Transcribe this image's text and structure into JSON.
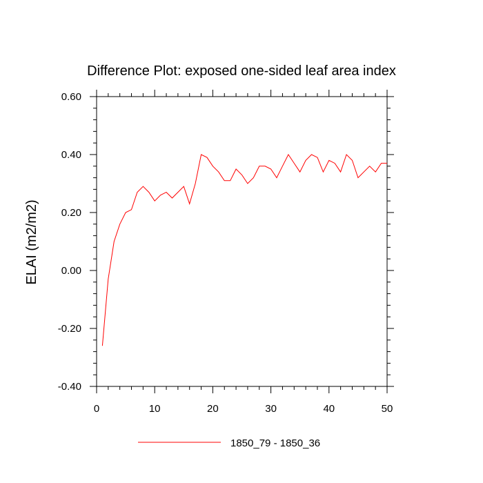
{
  "chart_data": {
    "type": "line",
    "title": "Difference Plot: exposed one-sided leaf area index",
    "xlabel": "",
    "ylabel": "ELAI  (m2/m2)",
    "xlim": [
      0,
      50
    ],
    "ylim": [
      -0.4,
      0.6
    ],
    "x_ticks": [
      0,
      10,
      20,
      30,
      40,
      50
    ],
    "x_tick_labels": [
      "0",
      "10",
      "20",
      "30",
      "40",
      "50"
    ],
    "y_ticks": [
      -0.4,
      -0.2,
      0.0,
      0.2,
      0.4,
      0.6
    ],
    "y_tick_labels": [
      "-0.40",
      "-0.20",
      "0.00",
      "0.20",
      "0.40",
      "0.60"
    ],
    "grid": false,
    "legend_position": "bottom",
    "series": [
      {
        "name": "1850_79 - 1850_36",
        "color": "#ff0000",
        "x": [
          1,
          2,
          3,
          4,
          5,
          6,
          7,
          8,
          9,
          10,
          11,
          12,
          13,
          14,
          15,
          16,
          17,
          18,
          19,
          20,
          21,
          22,
          23,
          24,
          25,
          26,
          27,
          28,
          29,
          30,
          31,
          32,
          33,
          34,
          35,
          36,
          37,
          38,
          39,
          40,
          41,
          42,
          43,
          44,
          45,
          46,
          47,
          48,
          49,
          50
        ],
        "values": [
          -0.26,
          -0.03,
          0.1,
          0.16,
          0.2,
          0.21,
          0.27,
          0.29,
          0.27,
          0.24,
          0.26,
          0.27,
          0.25,
          0.27,
          0.29,
          0.23,
          0.3,
          0.4,
          0.39,
          0.36,
          0.34,
          0.31,
          0.31,
          0.35,
          0.33,
          0.3,
          0.32,
          0.36,
          0.36,
          0.35,
          0.32,
          0.36,
          0.4,
          0.37,
          0.34,
          0.38,
          0.4,
          0.39,
          0.34,
          0.38,
          0.37,
          0.34,
          0.4,
          0.38,
          0.32,
          0.34,
          0.36,
          0.34,
          0.37,
          0.37
        ]
      }
    ]
  }
}
